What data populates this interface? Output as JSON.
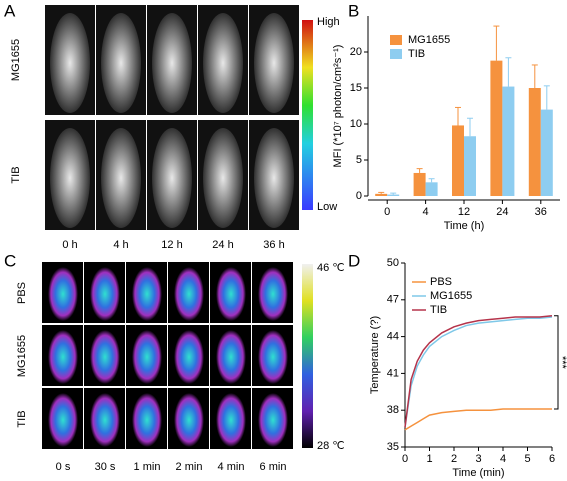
{
  "panel_labels": [
    "A",
    "B",
    "C",
    "D"
  ],
  "panel_a": {
    "rows": [
      "MG1655",
      "TIB"
    ],
    "columns": [
      "0 h",
      "4 h",
      "12 h",
      "24 h",
      "36 h"
    ],
    "scale_high": "High",
    "scale_low": "Low"
  },
  "panel_c": {
    "rows": [
      "PBS",
      "MG1655",
      "TIB"
    ],
    "columns": [
      "0 s",
      "30 s",
      "1 min",
      "2 min",
      "4 min",
      "6 min"
    ],
    "scale_high": "46 ℃",
    "scale_low": "28 ℃"
  },
  "chart_data": [
    {
      "type": "bar",
      "x_label": "Time (h)",
      "y_label": "MFI (*10⁷ photon/cm²s⁻¹)",
      "categories": [
        "0",
        "4",
        "12",
        "24",
        "36"
      ],
      "series": [
        {
          "name": "MG1655",
          "color": "#f5923e",
          "values": [
            0.3,
            3.2,
            9.8,
            18.8,
            15.0
          ],
          "errors": [
            0.2,
            0.6,
            2.5,
            4.8,
            3.2
          ]
        },
        {
          "name": "TIB",
          "color": "#8ecdf0",
          "values": [
            0.2,
            1.9,
            8.3,
            15.2,
            12.0
          ],
          "errors": [
            0.2,
            0.5,
            2.5,
            4.0,
            3.3
          ]
        }
      ],
      "ylim": [
        0,
        25
      ],
      "yticks": [
        0,
        5,
        10,
        15,
        20
      ],
      "legend": "top-left"
    },
    {
      "type": "line",
      "x_label": "Time (min)",
      "y_label": "Temperature (?)",
      "annotation": "***",
      "x": [
        0,
        0.25,
        0.5,
        0.75,
        1,
        1.5,
        2,
        2.5,
        3,
        3.5,
        4,
        4.5,
        5,
        5.5,
        6
      ],
      "series": [
        {
          "name": "PBS",
          "color": "#f5923e",
          "values": [
            36.4,
            36.7,
            37.0,
            37.3,
            37.6,
            37.8,
            37.9,
            38.0,
            38.0,
            38.0,
            38.1,
            38.1,
            38.1,
            38.1,
            38.1
          ]
        },
        {
          "name": "MG1655",
          "color": "#7fc8e8",
          "values": [
            36.6,
            40.0,
            41.6,
            42.5,
            43.2,
            44.0,
            44.5,
            44.9,
            45.1,
            45.2,
            45.3,
            45.4,
            45.5,
            45.5,
            45.6
          ]
        },
        {
          "name": "TIB",
          "color": "#b5334a",
          "values": [
            36.6,
            40.5,
            42.0,
            42.9,
            43.5,
            44.3,
            44.8,
            45.1,
            45.3,
            45.4,
            45.5,
            45.6,
            45.6,
            45.6,
            45.7
          ]
        }
      ],
      "xlim": [
        0,
        6
      ],
      "xticks": [
        0,
        1,
        2,
        3,
        4,
        5,
        6
      ],
      "ylim": [
        35,
        50
      ],
      "yticks": [
        35,
        38,
        41,
        44,
        47,
        50
      ],
      "legend": "top-left"
    }
  ]
}
